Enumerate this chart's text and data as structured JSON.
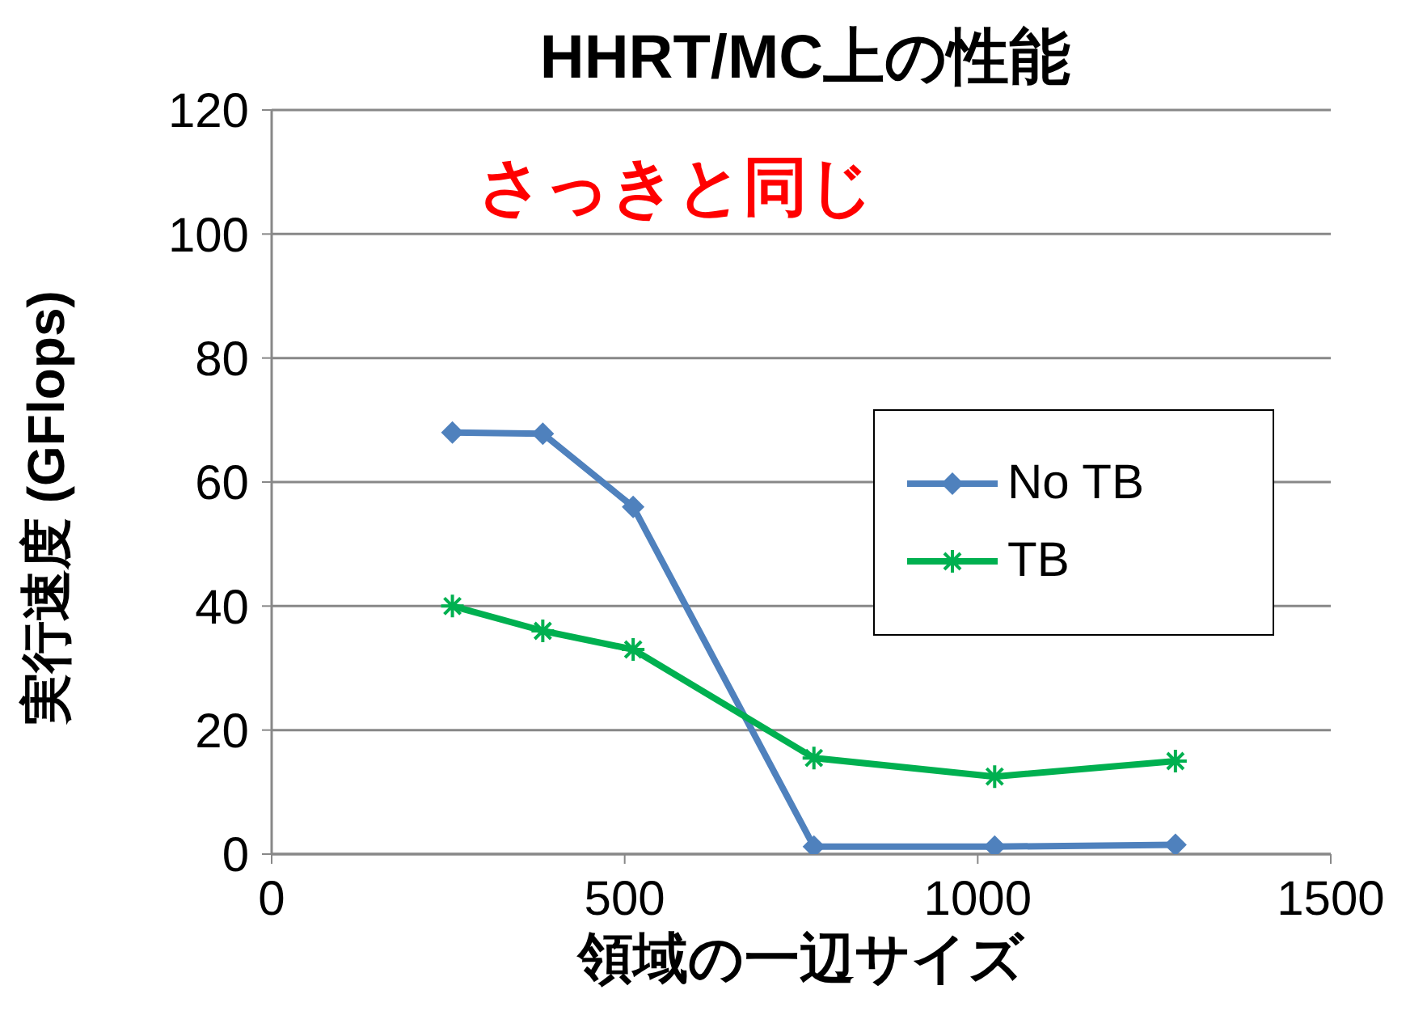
{
  "chart_data": {
    "type": "line",
    "title": "HHRT/MC上の性能",
    "annotations": [
      "さっきと同じ"
    ],
    "xlabel": "領域の一辺サイズ",
    "ylabel": "実行速度 (GFlops)",
    "xlim": [
      0,
      1500
    ],
    "xticks": [
      0,
      500,
      1000,
      1500
    ],
    "ylim": [
      0,
      120
    ],
    "yticks": [
      0,
      20,
      40,
      60,
      80,
      100,
      120
    ],
    "grid": "y",
    "legend": "right",
    "series": [
      {
        "name": "No TB",
        "color": "#4f81bd",
        "marker": "diamond",
        "x": [
          256,
          384,
          512,
          768,
          1024,
          1280
        ],
        "values": [
          68,
          67.8,
          56,
          1.2,
          1.2,
          1.5
        ]
      },
      {
        "name": "TB",
        "color": "#00b050",
        "marker": "cross",
        "x": [
          256,
          384,
          512,
          768,
          1024,
          1280
        ],
        "values": [
          40,
          36,
          33,
          15.5,
          12.5,
          15
        ]
      }
    ]
  }
}
